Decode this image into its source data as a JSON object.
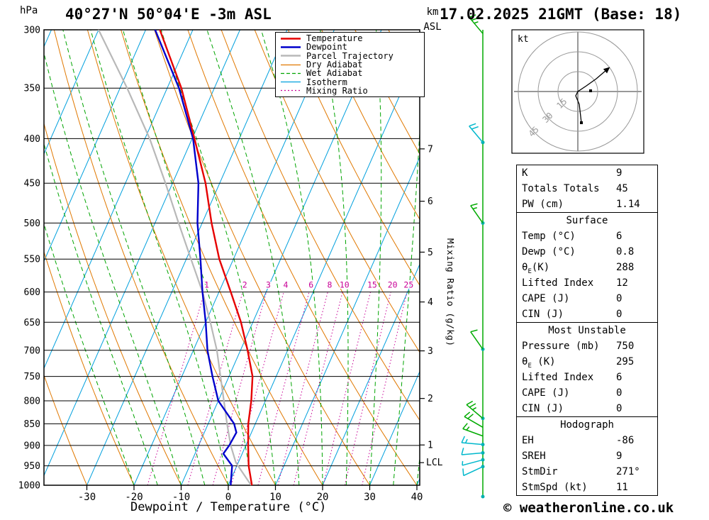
{
  "header": {
    "title": "40°27'N 50°04'E -3m ASL",
    "datetime": "17.02.2025 21GMT (Base: 18)"
  },
  "labels": {
    "pressure_unit": "hPa",
    "km": "km",
    "asl": "ASL",
    "xaxis": "Dewpoint / Temperature (°C)",
    "mixing_ratio": "Mixing Ratio (g/kg)",
    "lcl": "LCL"
  },
  "footer": {
    "copyright": "© weatheronline.co.uk"
  },
  "legend": [
    {
      "label": "Temperature",
      "color": "#e60000",
      "width": 2.5,
      "dash": ""
    },
    {
      "label": "Dewpoint",
      "color": "#0000cc",
      "width": 2.5,
      "dash": ""
    },
    {
      "label": "Parcel Trajectory",
      "color": "#b8b8b8",
      "width": 2.5,
      "dash": ""
    },
    {
      "label": "Dry Adiabat",
      "color": "#e07800",
      "width": 1.2,
      "dash": ""
    },
    {
      "label": "Wet Adiabat",
      "color": "#00a400",
      "width": 1.2,
      "dash": "5,3"
    },
    {
      "label": "Isotherm",
      "color": "#00a0dd",
      "width": 1.2,
      "dash": ""
    },
    {
      "label": "Mixing Ratio",
      "color": "#c80096",
      "width": 1.2,
      "dash": "2,3"
    }
  ],
  "hodograph": {
    "unit": "kt",
    "rings": [
      15,
      30,
      45
    ],
    "trace": [
      [
        5,
        44
      ],
      [
        2,
        18
      ],
      [
        -3,
        6
      ],
      [
        0,
        0
      ],
      [
        12,
        -8
      ],
      [
        26,
        -18
      ],
      [
        40,
        -30
      ]
    ],
    "markers": [
      [
        5,
        44
      ],
      [
        18,
        -1
      ]
    ]
  },
  "stats": {
    "sections": [
      {
        "header": "",
        "rows": [
          [
            "K",
            "9"
          ],
          [
            "Totals Totals",
            "45"
          ],
          [
            "PW (cm)",
            "1.14"
          ]
        ]
      },
      {
        "header": "Surface",
        "rows": [
          [
            "Temp (°C)",
            "6"
          ],
          [
            "Dewp (°C)",
            "0.8"
          ],
          [
            "θ_E(K)",
            "288"
          ],
          [
            "Lifted Index",
            "12"
          ],
          [
            "CAPE (J)",
            "0"
          ],
          [
            "CIN (J)",
            "0"
          ]
        ]
      },
      {
        "header": "Most Unstable",
        "rows": [
          [
            "Pressure (mb)",
            "750"
          ],
          [
            "θ_E (K)",
            "295"
          ],
          [
            "Lifted Index",
            "6"
          ],
          [
            "CAPE (J)",
            "0"
          ],
          [
            "CIN (J)",
            "0"
          ]
        ]
      },
      {
        "header": "Hodograph",
        "rows": [
          [
            "EH",
            "-86"
          ],
          [
            "SREH",
            "9"
          ],
          [
            "StmDir",
            "271°"
          ],
          [
            "StmSpd (kt)",
            "11"
          ]
        ]
      }
    ]
  },
  "colors": {
    "temperature": "#e60000",
    "dewpoint": "#0000cc",
    "parcel": "#b8b8b8",
    "dry_adiabat": "#e07800",
    "wet_adiabat": "#00a400",
    "isotherm": "#00a0dd",
    "mixing_ratio": "#c80096",
    "wind_green": "#00aa00",
    "wind_cyan": "#00b8cc",
    "dot_teal": "#00b0b0",
    "hodo_ring": "#999999"
  },
  "chart_data": {
    "type": "skewt_log_p_sounding",
    "pressure_range_hpa": [
      300,
      1000
    ],
    "temp_axis_range_c": [
      -39,
      41
    ],
    "pressure_ticks": [
      300,
      350,
      400,
      450,
      500,
      550,
      600,
      650,
      700,
      750,
      800,
      850,
      900,
      950,
      1000
    ],
    "temp_ticks": [
      -30,
      -20,
      -10,
      0,
      10,
      20,
      30,
      40
    ],
    "km_ticks": [
      {
        "km": 1,
        "p": 899
      },
      {
        "km": 2,
        "p": 795
      },
      {
        "km": 3,
        "p": 701
      },
      {
        "km": 4,
        "p": 616
      },
      {
        "km": 5,
        "p": 540
      },
      {
        "km": 6,
        "p": 472
      },
      {
        "km": 7,
        "p": 411
      }
    ],
    "lcl_pressure": 942,
    "mixing_ratio_lines_gkg": [
      1,
      2,
      3,
      4,
      6,
      8,
      10,
      15,
      20,
      25
    ],
    "temperature_profile": [
      [
        1013,
        6
      ],
      [
        1000,
        5
      ],
      [
        950,
        2.5
      ],
      [
        900,
        0.5
      ],
      [
        850,
        -1.5
      ],
      [
        800,
        -3
      ],
      [
        750,
        -5
      ],
      [
        700,
        -8.5
      ],
      [
        650,
        -12.5
      ],
      [
        600,
        -17.5
      ],
      [
        550,
        -23
      ],
      [
        500,
        -28
      ],
      [
        450,
        -33
      ],
      [
        400,
        -39.5
      ],
      [
        350,
        -47
      ],
      [
        300,
        -57
      ]
    ],
    "dewpoint_profile": [
      [
        1013,
        0.8
      ],
      [
        1000,
        0.5
      ],
      [
        950,
        -1
      ],
      [
        920,
        -4
      ],
      [
        900,
        -3.5
      ],
      [
        870,
        -3.2
      ],
      [
        850,
        -4.5
      ],
      [
        800,
        -10
      ],
      [
        750,
        -13.5
      ],
      [
        700,
        -17
      ],
      [
        650,
        -20
      ],
      [
        600,
        -23.5
      ],
      [
        550,
        -27
      ],
      [
        500,
        -31
      ],
      [
        450,
        -34.5
      ],
      [
        400,
        -39.8
      ],
      [
        350,
        -47.5
      ],
      [
        300,
        -58
      ]
    ],
    "parcel_profile": [
      [
        1013,
        6
      ],
      [
        942,
        -0.5
      ],
      [
        900,
        -3.2
      ],
      [
        850,
        -6
      ],
      [
        800,
        -8.8
      ],
      [
        750,
        -11.8
      ],
      [
        700,
        -15
      ],
      [
        650,
        -19
      ],
      [
        600,
        -23.5
      ],
      [
        550,
        -29
      ],
      [
        500,
        -35
      ],
      [
        450,
        -41.5
      ],
      [
        400,
        -49
      ],
      [
        350,
        -58.5
      ],
      [
        300,
        -70
      ]
    ],
    "wind_barbs": [
      {
        "p": 303,
        "color": "green",
        "angle": -40,
        "full": 2,
        "half": 1
      },
      {
        "p": 404,
        "color": "cyan",
        "angle": -40,
        "full": 2,
        "half": 0
      },
      {
        "p": 500,
        "color": "green",
        "angle": -35,
        "full": 1,
        "half": 1
      },
      {
        "p": 698,
        "color": "green",
        "angle": -35,
        "full": 1,
        "half": 0
      },
      {
        "p": 838,
        "color": "green",
        "angle": -50,
        "full": 2,
        "half": 1
      },
      {
        "p": 858,
        "color": "green",
        "angle": -60,
        "full": 2,
        "half": 0
      },
      {
        "p": 878,
        "color": "green",
        "angle": -70,
        "full": 1,
        "half": 1
      },
      {
        "p": 898,
        "color": "cyan",
        "angle": -85,
        "full": 1,
        "half": 1
      },
      {
        "p": 918,
        "color": "cyan",
        "angle": -95,
        "full": 1,
        "half": 0
      },
      {
        "p": 935,
        "color": "cyan",
        "angle": -105,
        "full": 0,
        "half": 1
      },
      {
        "p": 952,
        "color": "cyan",
        "angle": -115,
        "full": 1,
        "half": 0
      }
    ],
    "wind_dots": [
      404,
      500,
      698,
      838,
      898,
      918,
      935,
      952
    ]
  }
}
